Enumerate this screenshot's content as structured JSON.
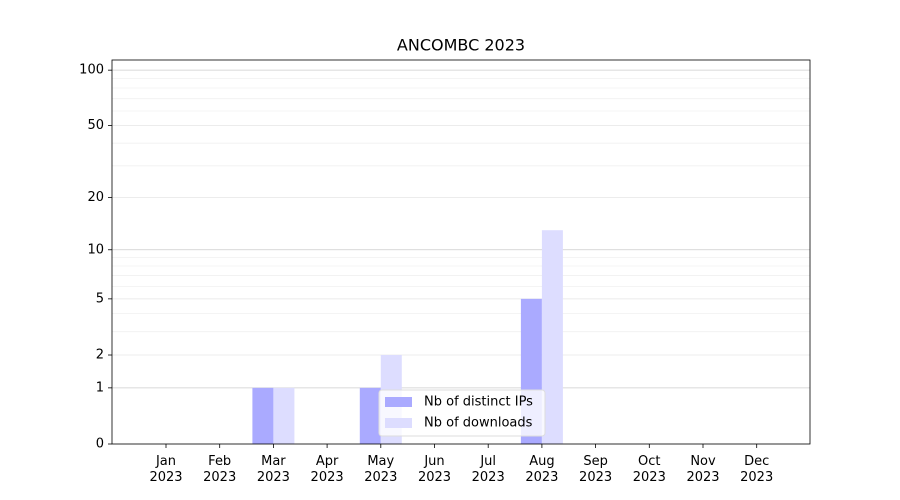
{
  "chart_data": {
    "type": "bar",
    "title": "ANCOMBC 2023",
    "scale": "log1p",
    "categories": [
      "Jan\n2023",
      "Feb\n2023",
      "Mar\n2023",
      "Apr\n2023",
      "May\n2023",
      "Jun\n2023",
      "Jul\n2023",
      "Aug\n2023",
      "Sep\n2023",
      "Oct\n2023",
      "Nov\n2023",
      "Dec\n2023"
    ],
    "series": [
      {
        "name": "Nb of distinct IPs",
        "color": "#aaaaff",
        "values": [
          0,
          0,
          1,
          0,
          1,
          0,
          0,
          5,
          0,
          0,
          0,
          0
        ]
      },
      {
        "name": "Nb of downloads",
        "color": "#ddddff",
        "values": [
          0,
          0,
          1,
          0,
          2,
          0,
          0,
          13,
          0,
          0,
          0,
          0
        ]
      }
    ],
    "ylim": [
      0,
      113.5
    ],
    "yticks": [
      0,
      1,
      2,
      5,
      10,
      20,
      50,
      100
    ],
    "minor_yticks": [
      3,
      4,
      6,
      7,
      8,
      9,
      30,
      40,
      60,
      70,
      80,
      90
    ],
    "grid": true,
    "legend": "lower center"
  }
}
